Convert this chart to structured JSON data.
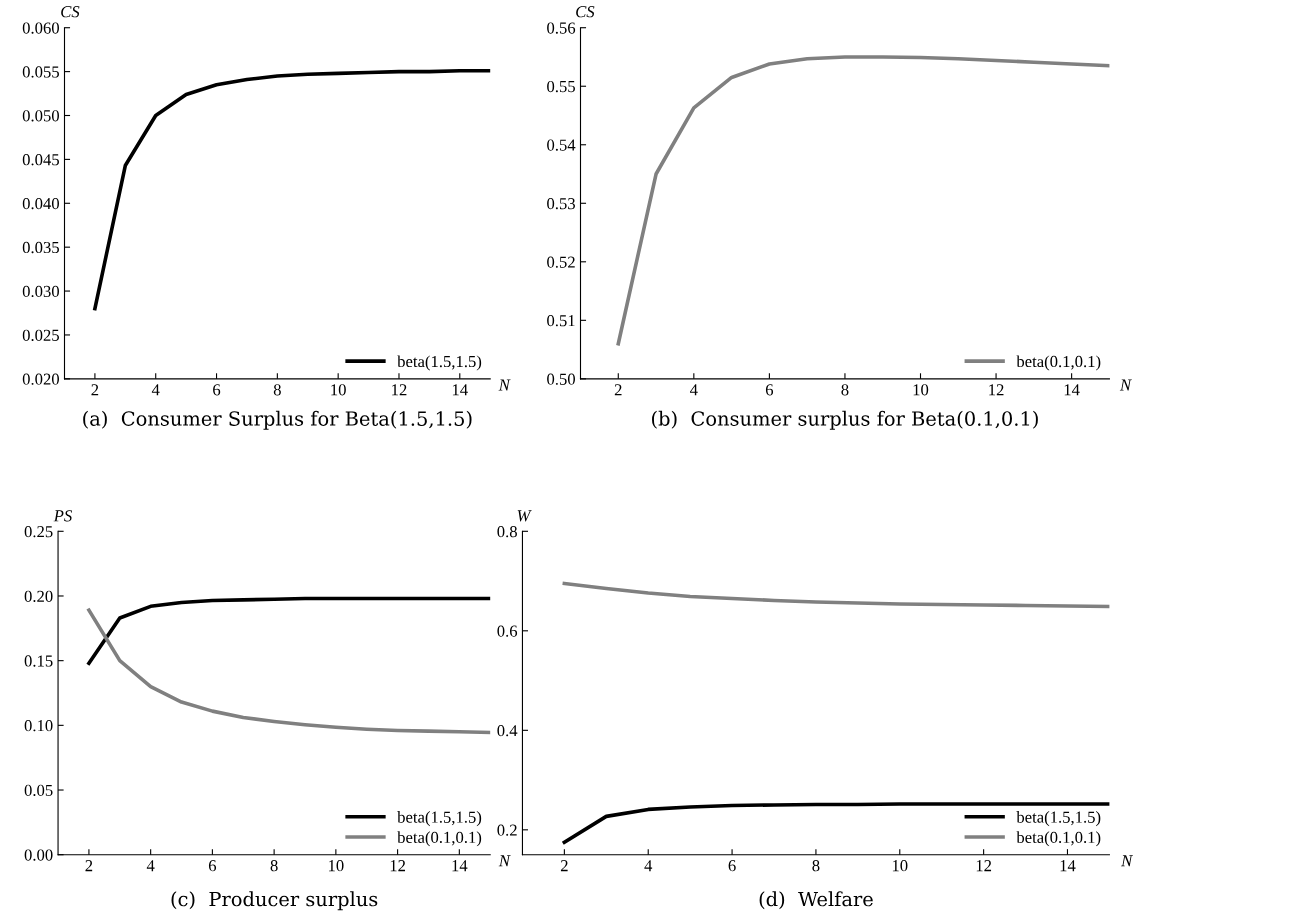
{
  "chart_data": [
    {
      "type": "line",
      "xlabel": "N",
      "ylabel": "CS",
      "x": [
        2,
        3,
        4,
        5,
        6,
        7,
        8,
        9,
        10,
        11,
        12,
        13,
        14,
        15
      ],
      "xlim": [
        1,
        15
      ],
      "xticks": [
        2,
        4,
        6,
        8,
        10,
        12,
        14
      ],
      "ylim": [
        0.02,
        0.06
      ],
      "yticks": [
        {
          "value": 0.02,
          "label": "0.020"
        },
        {
          "value": 0.025,
          "label": "0.025"
        },
        {
          "value": 0.03,
          "label": "0.030"
        },
        {
          "value": 0.035,
          "label": "0.035"
        },
        {
          "value": 0.04,
          "label": "0.040"
        },
        {
          "value": 0.045,
          "label": "0.045"
        },
        {
          "value": 0.05,
          "label": "0.050"
        },
        {
          "value": 0.055,
          "label": "0.055"
        },
        {
          "value": 0.06,
          "label": "0.060"
        }
      ],
      "series": [
        {
          "name": "beta(1.5,1.5)",
          "color": "#000000",
          "values": [
            0.028,
            0.0443,
            0.05,
            0.0524,
            0.0535,
            0.0541,
            0.0545,
            0.0547,
            0.0548,
            0.0549,
            0.055,
            0.055,
            0.0551,
            0.0551
          ]
        }
      ],
      "legend": "bottom right",
      "grid": false,
      "annotations": [
        "(a)  Consumer Surplus for Beta(1.5,1.5)"
      ]
    },
    {
      "type": "line",
      "xlabel": "N",
      "ylabel": "CS",
      "x": [
        2,
        3,
        4,
        5,
        6,
        7,
        8,
        9,
        10,
        11,
        12,
        13,
        14,
        15
      ],
      "xlim": [
        1,
        15
      ],
      "xticks": [
        2,
        4,
        6,
        8,
        10,
        12,
        14
      ],
      "ylim": [
        0.5,
        0.56
      ],
      "yticks": [
        {
          "value": 0.5,
          "label": "0.50"
        },
        {
          "value": 0.51,
          "label": "0.51"
        },
        {
          "value": 0.52,
          "label": "0.52"
        },
        {
          "value": 0.53,
          "label": "0.53"
        },
        {
          "value": 0.54,
          "label": "0.54"
        },
        {
          "value": 0.55,
          "label": "0.55"
        },
        {
          "value": 0.56,
          "label": "0.56"
        }
      ],
      "series": [
        {
          "name": "beta(0.1,0.1)",
          "color": "#808080",
          "values": [
            0.506,
            0.535,
            0.5463,
            0.5515,
            0.5538,
            0.5547,
            0.555,
            0.555,
            0.5549,
            0.5547,
            0.5544,
            0.5541,
            0.5538,
            0.5535
          ]
        }
      ],
      "legend": "bottom right",
      "grid": false,
      "annotations": [
        "(b)  Consumer surplus for Beta(0.1,0.1)"
      ]
    },
    {
      "type": "line",
      "xlabel": "N",
      "ylabel": "PS",
      "x": [
        2,
        3,
        4,
        5,
        6,
        7,
        8,
        9,
        10,
        11,
        12,
        13,
        14,
        15
      ],
      "xlim": [
        1,
        15
      ],
      "xticks": [
        2,
        4,
        6,
        8,
        10,
        12,
        14
      ],
      "ylim": [
        0,
        0.25
      ],
      "yticks": [
        {
          "value": 0,
          "label": "0.00"
        },
        {
          "value": 0.05,
          "label": "0.05"
        },
        {
          "value": 0.1,
          "label": "0.10"
        },
        {
          "value": 0.15,
          "label": "0.15"
        },
        {
          "value": 0.2,
          "label": "0.20"
        },
        {
          "value": 0.25,
          "label": "0.25"
        }
      ],
      "series": [
        {
          "name": "beta(1.5,1.5)",
          "color": "#000000",
          "values": [
            0.148,
            0.183,
            0.192,
            0.195,
            0.1965,
            0.197,
            0.1975,
            0.198,
            0.198,
            0.198,
            0.198,
            0.198,
            0.198,
            0.198
          ]
        },
        {
          "name": "beta(0.1,0.1)",
          "color": "#808080",
          "values": [
            0.189,
            0.15,
            0.13,
            0.118,
            0.111,
            0.106,
            0.103,
            0.1005,
            0.0985,
            0.097,
            0.096,
            0.0955,
            0.095,
            0.0945
          ]
        }
      ],
      "legend": "bottom right",
      "grid": false,
      "annotations": [
        "(c)  Producer surplus"
      ]
    },
    {
      "type": "line",
      "xlabel": "N",
      "ylabel": "W",
      "x": [
        2,
        3,
        4,
        5,
        6,
        7,
        8,
        9,
        10,
        11,
        12,
        13,
        14,
        15
      ],
      "xlim": [
        1,
        15
      ],
      "xticks": [
        2,
        4,
        6,
        8,
        10,
        12,
        14
      ],
      "ylim": [
        0.15,
        0.8
      ],
      "yticks": [
        {
          "value": 0.2,
          "label": "0.2"
        },
        {
          "value": 0.4,
          "label": "0.4"
        },
        {
          "value": 0.6,
          "label": "0.6"
        },
        {
          "value": 0.8,
          "label": "0.8"
        }
      ],
      "series": [
        {
          "name": "beta(1.5,1.5)",
          "color": "#000000",
          "values": [
            0.175,
            0.227,
            0.241,
            0.246,
            0.249,
            0.25,
            0.251,
            0.251,
            0.252,
            0.252,
            0.252,
            0.252,
            0.252,
            0.252
          ]
        },
        {
          "name": "beta(0.1,0.1)",
          "color": "#808080",
          "values": [
            0.695,
            0.685,
            0.676,
            0.669,
            0.665,
            0.661,
            0.658,
            0.656,
            0.654,
            0.653,
            0.652,
            0.651,
            0.65,
            0.649
          ]
        }
      ],
      "legend": "bottom right",
      "grid": false,
      "annotations": [
        "(d)  Welfare"
      ]
    }
  ]
}
